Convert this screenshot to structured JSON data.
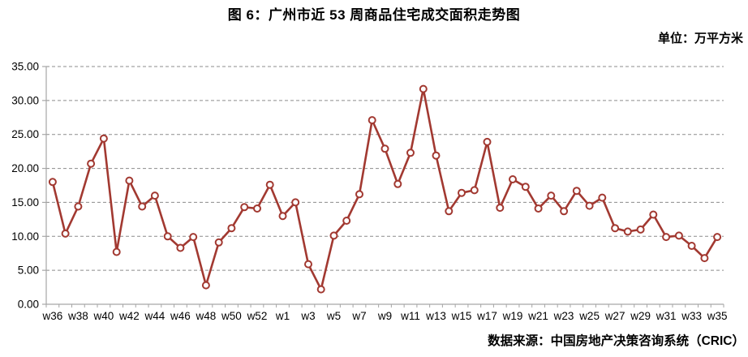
{
  "title": "图 6：广州市近 53 周商品住宅成交面积走势图",
  "unit_label": "单位：万平方米",
  "source_label": "数据来源：中国房地产决策咨询系统（CRIC）",
  "colors": {
    "line": "#A23931",
    "marker_fill": "#FFFFFF",
    "grid": "#8C8C8C",
    "axis": "#A6A6A6",
    "text": "#000000"
  },
  "chart_data": {
    "type": "line",
    "title": "图 6：广州市近 53 周商品住宅成交面积走势图",
    "ylabel": "万平方米",
    "ylim": [
      0,
      35
    ],
    "y_tick_step": 5,
    "y_tick_labels": [
      "0.00",
      "5.00",
      "10.00",
      "15.00",
      "20.00",
      "25.00",
      "30.00",
      "35.00"
    ],
    "grid": "horizontal-dashed",
    "legend": "none",
    "marker": "open-circle",
    "x": [
      "w36",
      "w37",
      "w38",
      "w39",
      "w40",
      "w41",
      "w42",
      "w43",
      "w44",
      "w45",
      "w46",
      "w47",
      "w48",
      "w49",
      "w50",
      "w51",
      "w52",
      "w53",
      "w1",
      "w2",
      "w3",
      "w4",
      "w5",
      "w6",
      "w7",
      "w8",
      "w9",
      "w10",
      "w11",
      "w12",
      "w13",
      "w14",
      "w15",
      "w16",
      "w17",
      "w18",
      "w19",
      "w20",
      "w21",
      "w22",
      "w23",
      "w24",
      "w25",
      "w26",
      "w27",
      "w28",
      "w29",
      "w30",
      "w31",
      "w32",
      "w33",
      "w34",
      "w35"
    ],
    "x_tick_labels_shown": [
      "w36",
      "w38",
      "w40",
      "w42",
      "w44",
      "w46",
      "w48",
      "w50",
      "w52",
      "w1",
      "w3",
      "w5",
      "w7",
      "w9",
      "w11",
      "w13",
      "w15",
      "w17",
      "w19",
      "w21",
      "w23",
      "w25",
      "w27",
      "w29",
      "w31",
      "w33",
      "w35"
    ],
    "values": [
      18.0,
      10.4,
      14.4,
      20.7,
      24.4,
      7.7,
      18.2,
      14.4,
      16.0,
      10.0,
      8.3,
      9.9,
      2.8,
      9.1,
      11.2,
      14.3,
      14.1,
      17.6,
      13.0,
      15.0,
      5.9,
      2.2,
      10.1,
      12.3,
      16.2,
      27.1,
      22.9,
      17.7,
      22.3,
      31.7,
      21.9,
      13.7,
      16.4,
      16.8,
      23.9,
      14.2,
      18.4,
      17.3,
      14.1,
      16.0,
      13.7,
      16.7,
      14.5,
      15.7,
      11.2,
      10.7,
      11.0,
      13.2,
      9.9,
      10.1,
      8.6,
      6.8,
      9.9
    ]
  }
}
